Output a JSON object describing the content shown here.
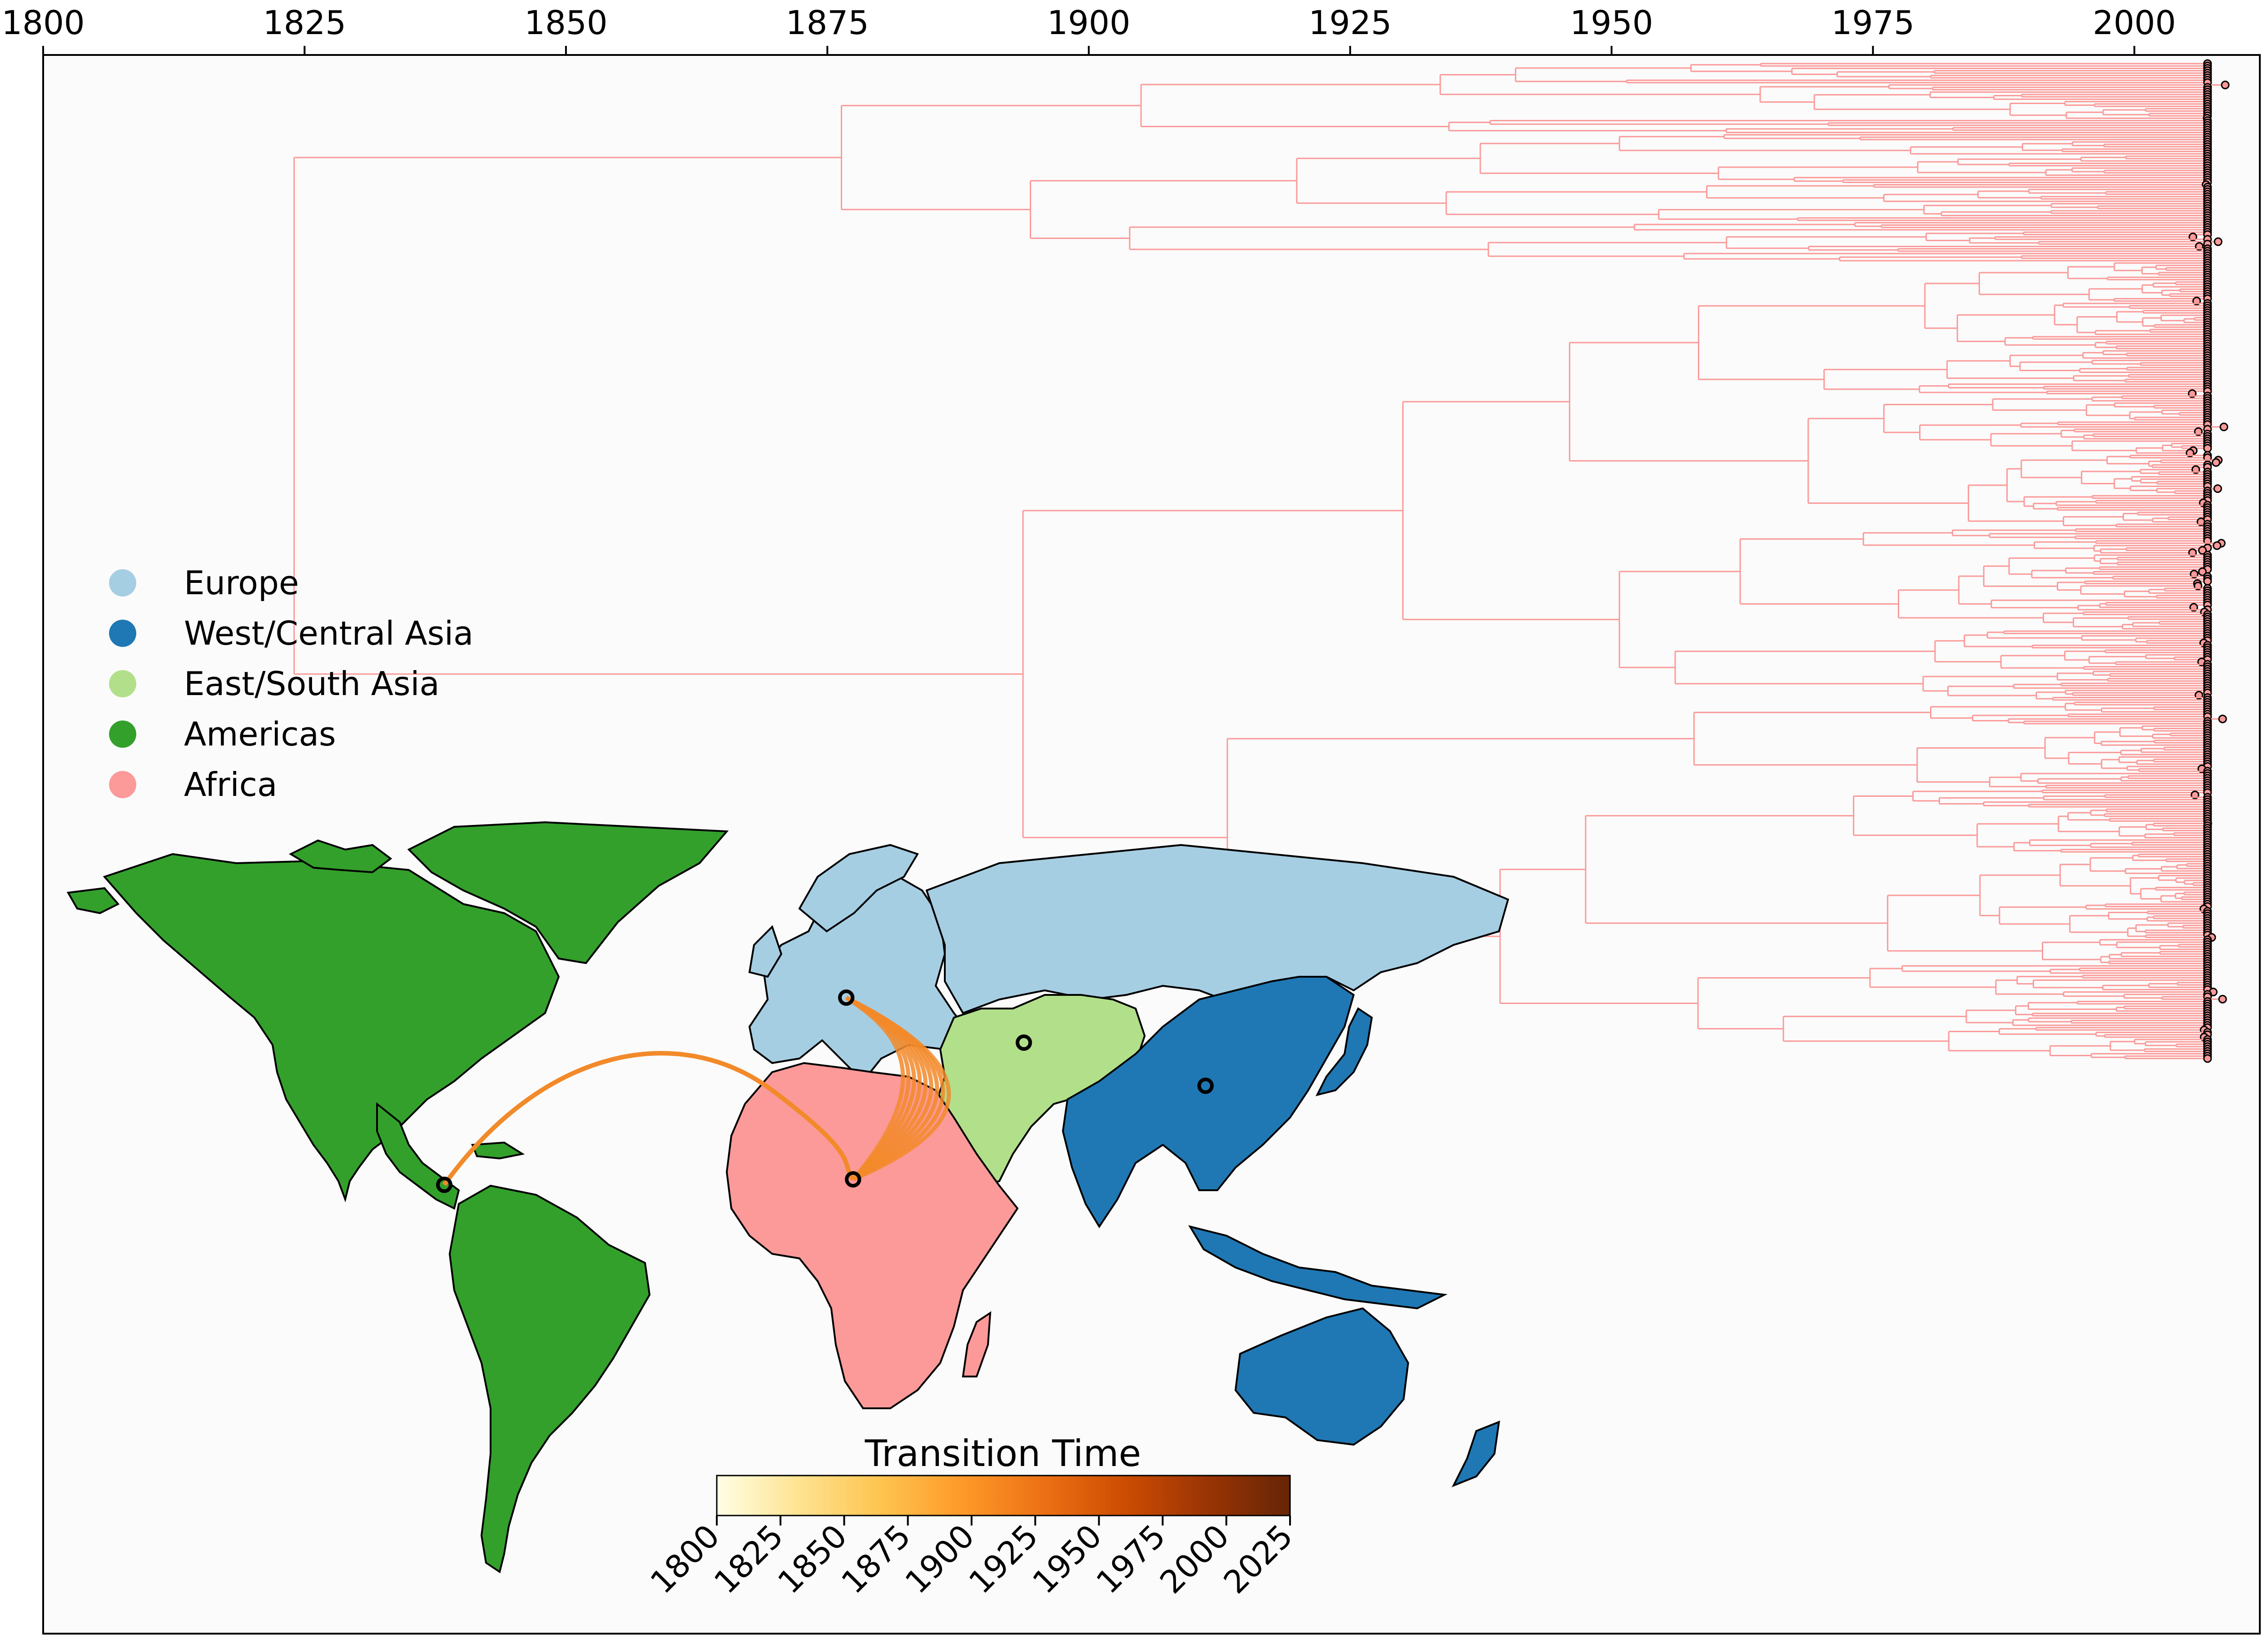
{
  "axis": {
    "min": 1800,
    "max": 2012,
    "ticks": [
      "1800",
      "1825",
      "1850",
      "1875",
      "1900",
      "1925",
      "1950",
      "1975",
      "2000"
    ]
  },
  "legend": [
    {
      "label": "Europe",
      "color": "#a6cee3"
    },
    {
      "label": "West/Central Asia",
      "color": "#1f78b4"
    },
    {
      "label": "East/South Asia",
      "color": "#b2df8a"
    },
    {
      "label": "Americas",
      "color": "#33a02c"
    },
    {
      "label": "Africa",
      "color": "#fb9a99"
    }
  ],
  "colorbar": {
    "title": "Transition Time",
    "labels": [
      "1800",
      "1825",
      "1850",
      "1875",
      "1900",
      "1925",
      "1950",
      "1975",
      "2000",
      "2025"
    ],
    "stops": [
      "#ffffe5",
      "#fee391",
      "#fec44f",
      "#fe9929",
      "#ec7014",
      "#cc4c02",
      "#993404",
      "#662506"
    ]
  },
  "tree": {
    "branch_color": "#fb9a99",
    "root_year": 1824,
    "tip_year": 2007
  },
  "map": {
    "region_colors": {
      "Europe": "#a6cee3",
      "West/Central Asia": "#1f78b4",
      "East/South Asia": "#b2df8a",
      "Americas": "#33a02c",
      "Africa": "#fb9a99"
    },
    "transition_color": "#f28a2a"
  }
}
